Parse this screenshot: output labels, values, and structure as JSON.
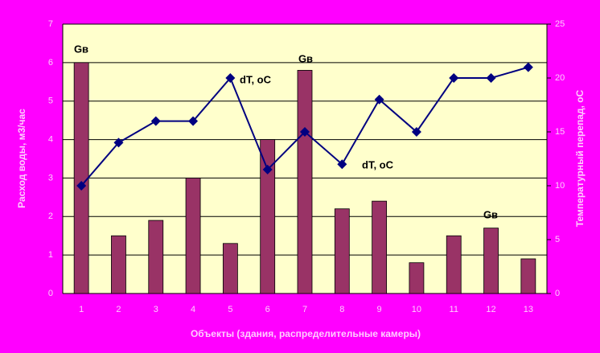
{
  "chart_data": {
    "type": "bar+line",
    "categories": [
      "1",
      "2",
      "3",
      "4",
      "5",
      "6",
      "7",
      "8",
      "9",
      "10",
      "11",
      "12",
      "13"
    ],
    "series": [
      {
        "name": "Gв",
        "type": "bar",
        "color": "#993366",
        "values": [
          6,
          1.5,
          1.9,
          3,
          1.3,
          4,
          5.8,
          2.2,
          2.4,
          0.8,
          1.5,
          1.7,
          0.9
        ]
      },
      {
        "name": "dT, oC",
        "type": "line",
        "axis": "y2",
        "color": "#000080",
        "values": [
          10,
          14,
          16,
          16,
          20,
          11.5,
          15,
          12,
          18,
          15,
          20,
          20,
          21
        ]
      }
    ],
    "ylim": [
      0,
      7
    ],
    "yticks": [
      0,
      1,
      2,
      3,
      4,
      5,
      6,
      7
    ],
    "y2lim": [
      0,
      25
    ],
    "y2ticks": [
      0,
      5,
      10,
      15,
      20,
      25
    ],
    "y_label": "Расход воды, м3/час",
    "y2_label": "Температурный перепад, оС",
    "x_label": "Объекты (здания, распределительные камеры)",
    "annotations": [
      "Gв",
      "dT, oC",
      "Gв",
      "dT, oC",
      "Gв"
    ],
    "grid": true
  }
}
